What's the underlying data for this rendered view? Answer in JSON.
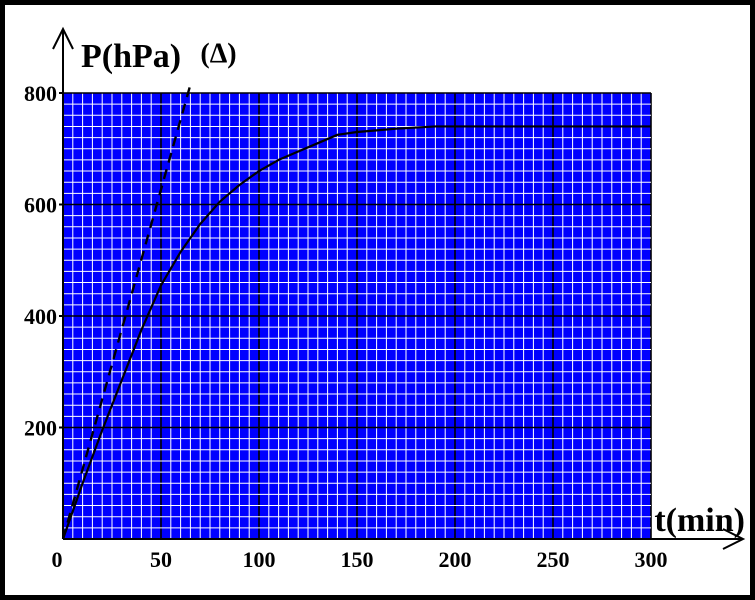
{
  "chart_data": {
    "type": "line",
    "title": "",
    "xlabel": "t(min)",
    "ylabel": "P(hPa)",
    "xlim": [
      0,
      300
    ],
    "ylim": [
      0,
      800
    ],
    "x_ticks": [
      "0",
      "50",
      "100",
      "150",
      "200",
      "250",
      "300"
    ],
    "y_ticks": [
      "200",
      "400",
      "600",
      "800"
    ],
    "grid": true,
    "colors": {
      "grid_fill": "#0000ff",
      "grid_lines": "#ffffff",
      "major_grid": "#000000",
      "curve": "#000000"
    },
    "series": [
      {
        "x": [
          0,
          10,
          20,
          30,
          40,
          50,
          60,
          70,
          80,
          90,
          100,
          110,
          120,
          130,
          140,
          150,
          160,
          170,
          180,
          190,
          200,
          250,
          300
        ],
        "y": [
          0,
          100,
          195,
          285,
          375,
          455,
          515,
          565,
          605,
          635,
          660,
          680,
          695,
          710,
          725,
          730,
          733,
          736,
          738,
          740,
          740,
          740,
          740
        ]
      }
    ],
    "annotations": [
      {
        "label": "(Δ)",
        "type": "tangent line",
        "style": "dashed",
        "points": [
          [
            0,
            0
          ],
          [
            65,
            815
          ]
        ]
      }
    ]
  }
}
